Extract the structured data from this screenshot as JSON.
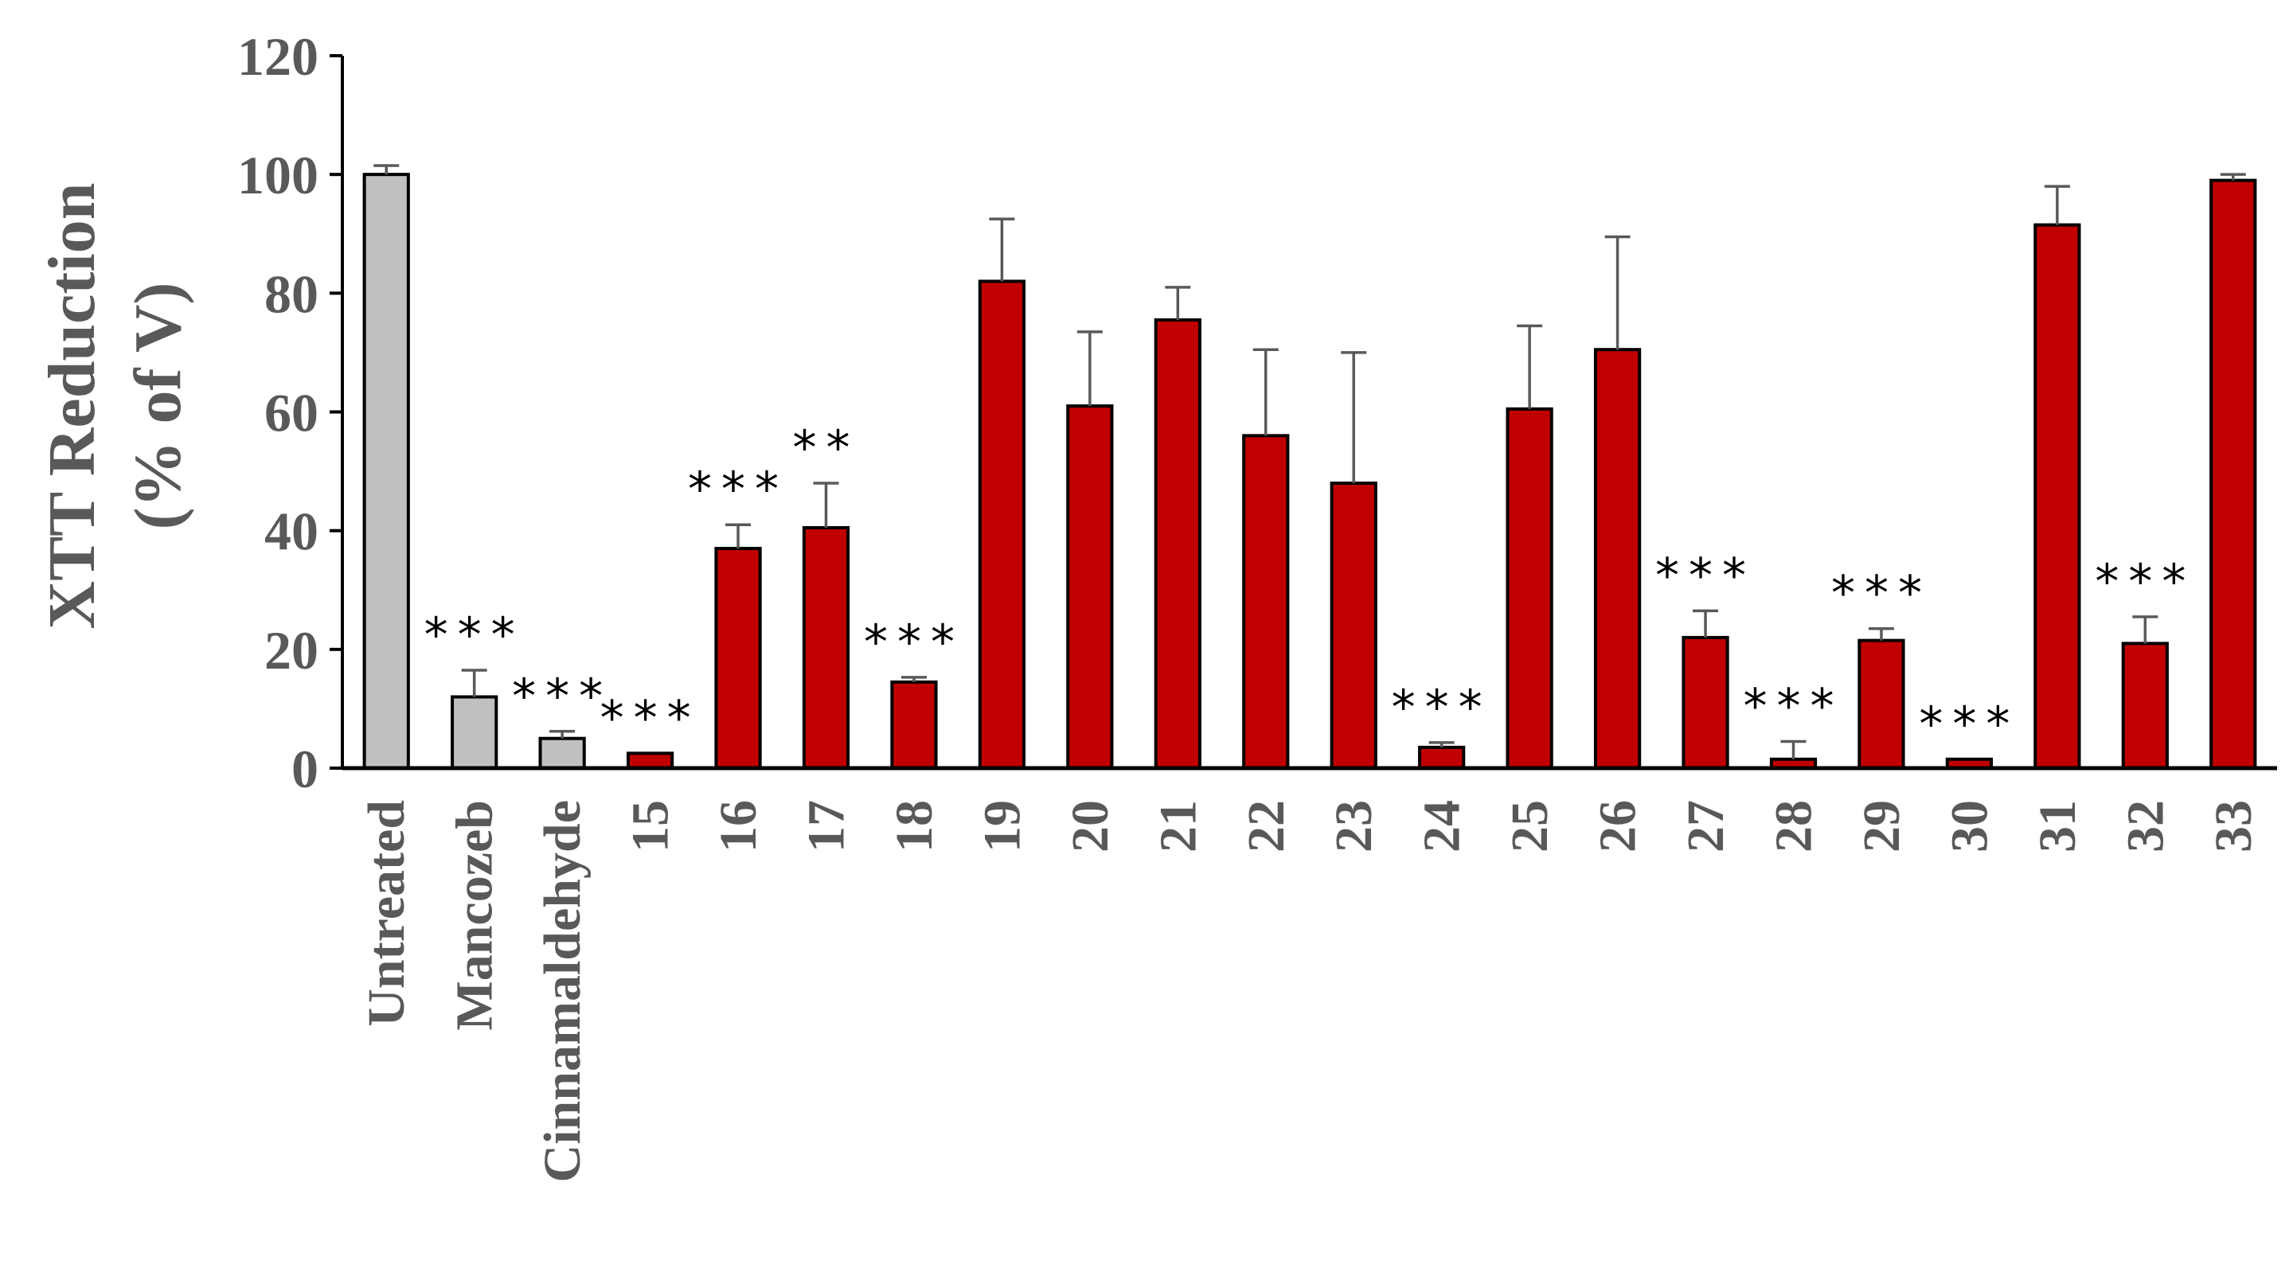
{
  "chart_data": {
    "type": "bar",
    "ylabel_line1": "XTT Reduction",
    "ylabel_line2": "(% of V)",
    "xlabel": "",
    "ylim": [
      0,
      120
    ],
    "yticks": [
      0,
      20,
      40,
      60,
      80,
      100,
      120
    ],
    "grid": false,
    "colors": {
      "control": "#c0c0c0",
      "treated": "#c00000",
      "error": "#595959",
      "significance": "#000000"
    },
    "bars": [
      {
        "label": "Untreated",
        "value": 100,
        "error": 1.5,
        "group": "control",
        "sig": ""
      },
      {
        "label": "Mancozeb",
        "value": 12,
        "error": 4.5,
        "group": "control",
        "sig": "***"
      },
      {
        "label": "Cinnamaldehyde",
        "value": 5,
        "error": 1.2,
        "group": "control",
        "sig": "***"
      },
      {
        "label": "15",
        "value": 2.5,
        "error": 0,
        "group": "treated",
        "sig": "***"
      },
      {
        "label": "16",
        "value": 37,
        "error": 4,
        "group": "treated",
        "sig": "***"
      },
      {
        "label": "17",
        "value": 40.5,
        "error": 7.5,
        "group": "treated",
        "sig": "**"
      },
      {
        "label": "18",
        "value": 14.5,
        "error": 0.8,
        "group": "treated",
        "sig": "***"
      },
      {
        "label": "19",
        "value": 82,
        "error": 10.5,
        "group": "treated",
        "sig": ""
      },
      {
        "label": "20",
        "value": 61,
        "error": 12.5,
        "group": "treated",
        "sig": ""
      },
      {
        "label": "21",
        "value": 75.5,
        "error": 5.5,
        "group": "treated",
        "sig": ""
      },
      {
        "label": "22",
        "value": 56,
        "error": 14.5,
        "group": "treated",
        "sig": ""
      },
      {
        "label": "23",
        "value": 48,
        "error": 22,
        "group": "treated",
        "sig": ""
      },
      {
        "label": "24",
        "value": 3.5,
        "error": 0.8,
        "group": "treated",
        "sig": "***"
      },
      {
        "label": "25",
        "value": 60.5,
        "error": 14,
        "group": "treated",
        "sig": ""
      },
      {
        "label": "26",
        "value": 70.5,
        "error": 19,
        "group": "treated",
        "sig": ""
      },
      {
        "label": "27",
        "value": 22,
        "error": 4.5,
        "group": "treated",
        "sig": "***"
      },
      {
        "label": "28",
        "value": 1.5,
        "error": 3,
        "group": "treated",
        "sig": "***"
      },
      {
        "label": "29",
        "value": 21.5,
        "error": 2,
        "group": "treated",
        "sig": "***"
      },
      {
        "label": "30",
        "value": 1.5,
        "error": 0,
        "group": "treated",
        "sig": "***"
      },
      {
        "label": "31",
        "value": 91.5,
        "error": 6.5,
        "group": "treated",
        "sig": ""
      },
      {
        "label": "32",
        "value": 21,
        "error": 4.5,
        "group": "treated",
        "sig": "***"
      },
      {
        "label": "33",
        "value": 99,
        "error": 1,
        "group": "treated",
        "sig": ""
      }
    ]
  }
}
